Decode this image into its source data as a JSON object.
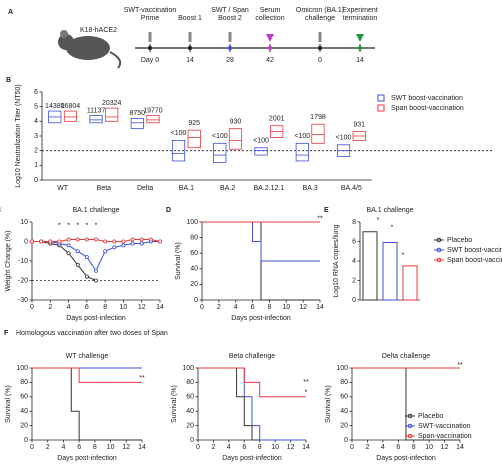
{
  "timeline": {
    "panel": "A",
    "mouse": "K18-hACE2",
    "events": [
      {
        "top": [
          "SWT-vaccination",
          "Prime"
        ],
        "day": "Day 0",
        "color": "#222222"
      },
      {
        "top": [
          "Boost 1"
        ],
        "day": "14",
        "color": "#222222"
      },
      {
        "top": [
          "SWT / Span",
          "Boost 2"
        ],
        "day": "28",
        "color": "#3b4fd8"
      },
      {
        "top": [
          "Serum",
          "collection"
        ],
        "day": "42",
        "color": "#c03cc8"
      },
      {
        "top": [
          "Omicron (BA.1)",
          "challenge"
        ],
        "day": "0",
        "color": "#222222"
      },
      {
        "top": [
          "Experiment",
          "termination"
        ],
        "day": "14",
        "color": "#1a9a3a"
      }
    ]
  },
  "panel_f": {
    "label": "F",
    "title": "Homologous vaccination after  two doses of Span"
  },
  "chart_data": [
    {
      "type": "box",
      "panel": "B",
      "ylabel": "Log10 Neutralization Titer (NT50)",
      "categories": [
        "WT",
        "Beta",
        "Delta",
        "BA.1",
        "BA.2",
        "BA.2.12.1",
        "BA.3",
        "BA.4/5"
      ],
      "ylim": [
        0,
        6
      ],
      "yticks": [
        0,
        1,
        2,
        3,
        4,
        5,
        6
      ],
      "reference_line": 2,
      "legend": "upper right",
      "series": [
        {
          "name": "SWT boost-vaccination",
          "color": "#3b4fd8",
          "values": [
            4.3,
            4.1,
            3.9,
            1.8,
            1.7,
            2.0,
            1.7,
            2.0
          ],
          "q1": [
            3.9,
            3.9,
            3.5,
            1.3,
            1.2,
            1.7,
            1.3,
            1.6
          ],
          "q3": [
            4.7,
            4.4,
            4.2,
            2.7,
            2.5,
            2.2,
            2.5,
            2.4
          ],
          "labels": [
            "14380",
            "11137",
            "8750",
            "<100",
            "<100",
            "<100",
            "<100",
            "<100"
          ]
        },
        {
          "name": "Span boost-vaccination",
          "color": "#e8383d",
          "values": [
            4.3,
            4.3,
            4.1,
            2.9,
            2.7,
            3.3,
            3.1,
            3.0
          ],
          "q1": [
            4.0,
            4.0,
            3.9,
            2.2,
            2.1,
            2.9,
            2.5,
            2.7
          ],
          "q3": [
            4.7,
            4.9,
            4.4,
            3.4,
            3.5,
            3.7,
            3.8,
            3.3
          ],
          "labels": [
            "16804",
            "20324",
            "19770",
            "925",
            "930",
            "2001",
            "1798",
            "931"
          ]
        }
      ]
    },
    {
      "type": "line",
      "panel": "C",
      "title": "BA.1 challenge",
      "xlabel": "Days post-infection",
      "ylabel": "Weight Change (%)",
      "x": [
        0,
        1,
        2,
        3,
        4,
        5,
        6,
        7,
        8,
        9,
        10,
        11,
        12,
        13,
        14
      ],
      "xlim": [
        0,
        14
      ],
      "xticks": [
        0,
        2,
        4,
        6,
        8,
        10,
        12,
        14
      ],
      "ylim": [
        -30,
        10
      ],
      "yticks": [
        -30,
        -20,
        -10,
        0,
        10
      ],
      "reference_line": -20,
      "annotations": [
        "*",
        "*",
        "*",
        "*",
        "*"
      ],
      "series": [
        {
          "color": "#333333",
          "values": [
            0,
            0,
            -1,
            -2,
            -6,
            -12,
            -18,
            -20,
            null,
            null,
            null,
            null,
            null,
            null,
            null
          ]
        },
        {
          "color": "#3b4fd8",
          "values": [
            0,
            0,
            0,
            -1,
            -2,
            -5,
            -8,
            -15,
            -5,
            -3,
            -2,
            -1,
            -1,
            0,
            0
          ]
        },
        {
          "color": "#e8383d",
          "values": [
            0,
            0,
            0,
            0,
            1,
            1,
            1,
            1,
            0,
            0,
            0,
            1,
            1,
            1,
            0
          ]
        }
      ]
    },
    {
      "type": "step",
      "panel": "D",
      "xlabel": "Days post-infection",
      "ylabel": "Survival (%)",
      "x": [
        0,
        1,
        2,
        3,
        4,
        5,
        6,
        7,
        8,
        9,
        10,
        11,
        12,
        13,
        14
      ],
      "xlim": [
        0,
        14
      ],
      "xticks": [
        0,
        2,
        4,
        6,
        8,
        10,
        12,
        14
      ],
      "ylim": [
        0,
        100
      ],
      "yticks": [
        0,
        20,
        40,
        60,
        80,
        100
      ],
      "annotations": [
        "**"
      ],
      "series": [
        {
          "color": "#333333",
          "values": [
            100,
            100,
            100,
            100,
            100,
            100,
            100,
            0,
            0,
            0,
            0,
            0,
            0,
            0,
            0
          ]
        },
        {
          "color": "#3b4fd8",
          "values": [
            100,
            100,
            100,
            100,
            100,
            100,
            75,
            50,
            50,
            50,
            50,
            50,
            50,
            50,
            50
          ]
        },
        {
          "color": "#e8383d",
          "values": [
            100,
            100,
            100,
            100,
            100,
            100,
            100,
            100,
            100,
            100,
            100,
            100,
            100,
            100,
            100
          ]
        }
      ]
    },
    {
      "type": "bar",
      "panel": "E",
      "title": "BA.1 challenge",
      "ylabel": "Log10 RNA copies/lung",
      "categories": [
        "Placebo",
        "SWT boost-vaccination",
        "Span boost-vaccination"
      ],
      "colors": [
        "#333333",
        "#3b4fd8",
        "#e8383d"
      ],
      "values": [
        7.0,
        5.9,
        3.5
      ],
      "ylim": [
        0,
        8
      ],
      "yticks": [
        0,
        2,
        4,
        6,
        8
      ],
      "annotations": [
        "*",
        "*",
        "*"
      ],
      "legend": "right"
    },
    {
      "type": "step",
      "title": "WT challenge",
      "xlabel": "Days post-infection",
      "ylabel": "Survival (%)",
      "x": [
        0,
        1,
        2,
        3,
        4,
        5,
        6,
        7,
        8,
        9,
        10,
        11,
        12,
        13,
        14
      ],
      "xlim": [
        0,
        14
      ],
      "xticks": [
        0,
        2,
        4,
        6,
        8,
        10,
        12,
        14
      ],
      "ylim": [
        0,
        100
      ],
      "yticks": [
        0,
        20,
        40,
        60,
        80,
        100
      ],
      "annotations": [
        "**"
      ],
      "series": [
        {
          "color": "#333333",
          "values": [
            100,
            100,
            100,
            100,
            100,
            40,
            0,
            0,
            0,
            0,
            0,
            0,
            0,
            0,
            0
          ]
        },
        {
          "color": "#3b4fd8",
          "values": [
            100,
            100,
            100,
            100,
            100,
            100,
            100,
            100,
            100,
            100,
            100,
            100,
            100,
            100,
            100
          ]
        },
        {
          "color": "#e8383d",
          "values": [
            100,
            100,
            100,
            100,
            100,
            100,
            80,
            80,
            80,
            80,
            80,
            80,
            80,
            80,
            80
          ]
        }
      ]
    },
    {
      "type": "step",
      "title": "Beta challenge",
      "xlabel": "Days post-infection",
      "ylabel": "Survival (%)",
      "x": [
        0,
        1,
        2,
        3,
        4,
        5,
        6,
        7,
        8,
        9,
        10,
        11,
        12,
        13,
        14
      ],
      "xlim": [
        0,
        14
      ],
      "xticks": [
        0,
        2,
        4,
        6,
        8,
        10,
        12,
        14
      ],
      "ylim": [
        0,
        100
      ],
      "yticks": [
        0,
        20,
        40,
        60,
        80,
        100
      ],
      "annotations": [
        "*",
        "**"
      ],
      "series": [
        {
          "color": "#333333",
          "values": [
            100,
            100,
            100,
            100,
            100,
            60,
            20,
            0,
            0,
            0,
            0,
            0,
            0,
            0,
            0
          ]
        },
        {
          "color": "#3b4fd8",
          "values": [
            100,
            100,
            100,
            100,
            100,
            100,
            60,
            20,
            0,
            0,
            0,
            0,
            0,
            0,
            0
          ]
        },
        {
          "color": "#e8383d",
          "values": [
            100,
            100,
            100,
            100,
            100,
            100,
            80,
            80,
            60,
            60,
            60,
            60,
            60,
            60,
            60
          ]
        }
      ]
    },
    {
      "type": "step",
      "title": "Delta challenge",
      "xlabel": "Days post-infection",
      "ylabel": "Survival (%)",
      "x": [
        0,
        1,
        2,
        3,
        4,
        5,
        6,
        7,
        8,
        9,
        10,
        11,
        12,
        13,
        14
      ],
      "xlim": [
        0,
        14
      ],
      "xticks": [
        0,
        2,
        4,
        6,
        8,
        10,
        12,
        14
      ],
      "ylim": [
        0,
        100
      ],
      "yticks": [
        0,
        20,
        40,
        60,
        80,
        100
      ],
      "annotations": [
        "**"
      ],
      "legend": "lower right",
      "series": [
        {
          "name": "Placebo",
          "color": "#333333",
          "values": [
            100,
            100,
            100,
            100,
            100,
            100,
            100,
            0,
            0,
            0,
            0,
            0,
            0,
            0,
            0
          ]
        },
        {
          "name": "SWT-vaccination",
          "color": "#3b4fd8",
          "values": [
            100,
            100,
            100,
            100,
            100,
            100,
            100,
            100,
            100,
            100,
            100,
            100,
            100,
            100,
            100
          ]
        },
        {
          "name": "Span-vaccination",
          "color": "#e8383d",
          "values": [
            100,
            100,
            100,
            100,
            100,
            100,
            100,
            100,
            100,
            100,
            100,
            100,
            100,
            100,
            100
          ]
        }
      ]
    }
  ]
}
